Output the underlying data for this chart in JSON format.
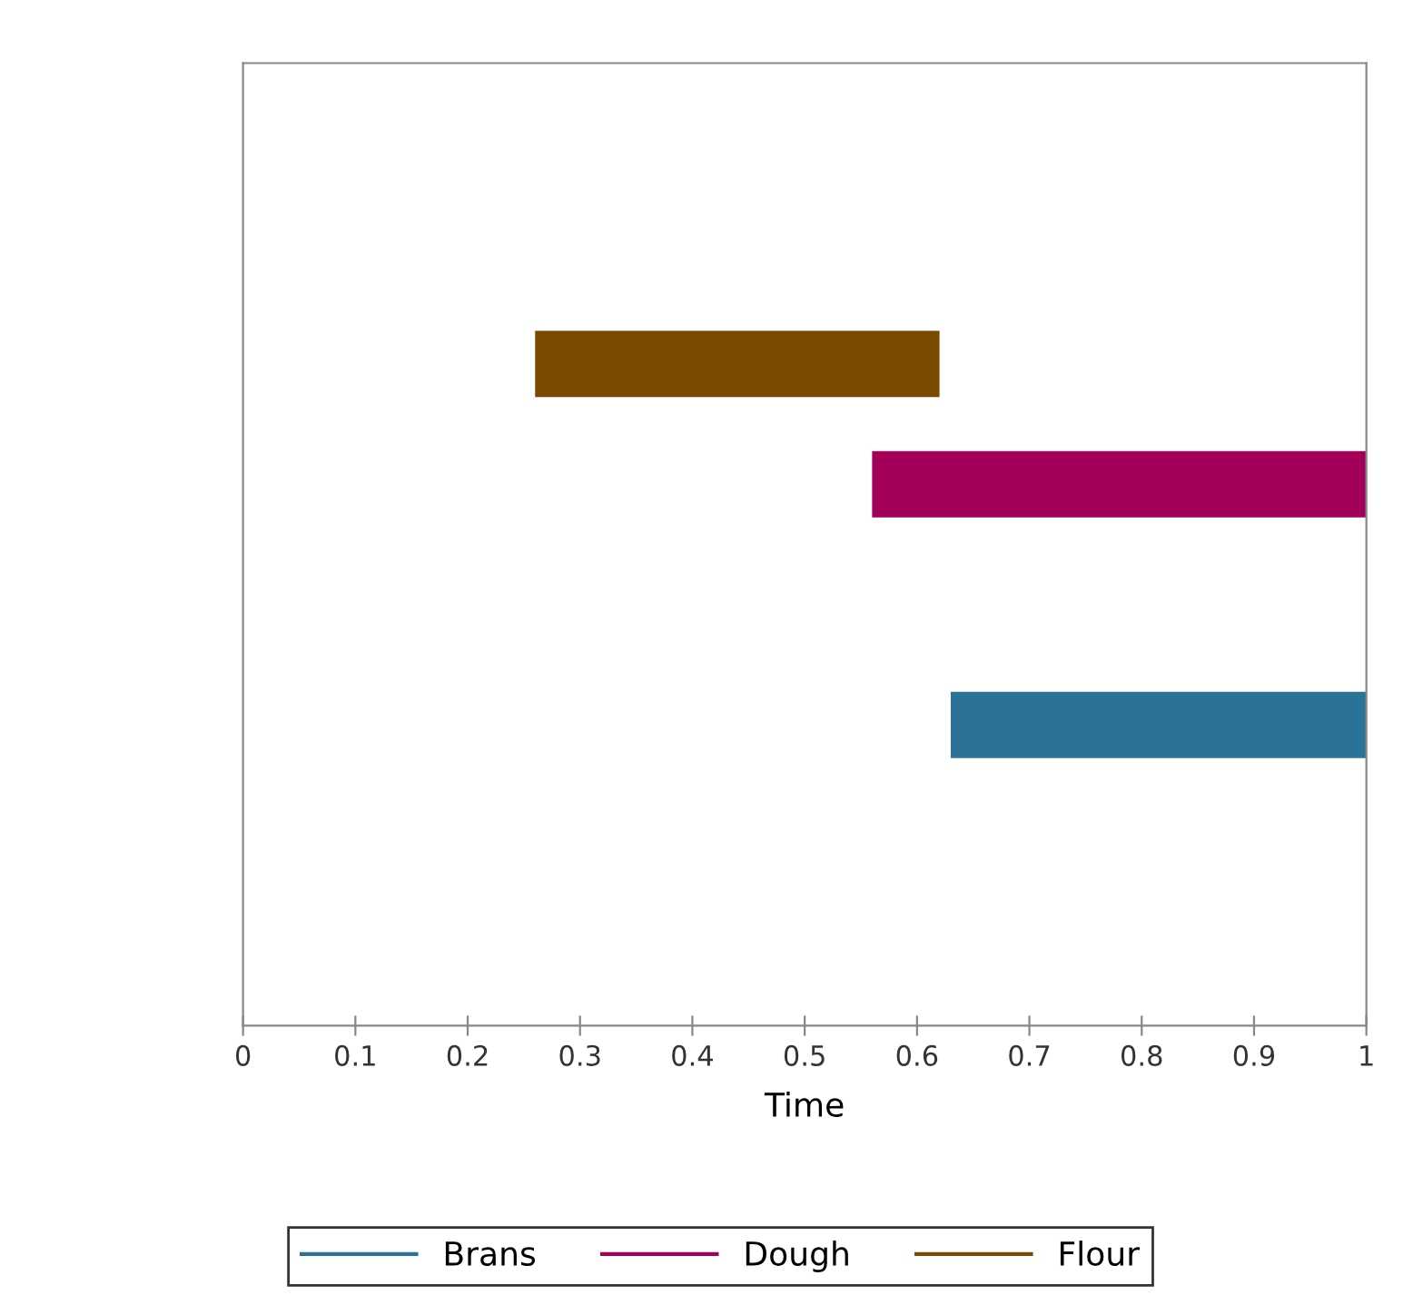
{
  "chart_data": {
    "type": "bar",
    "orientation": "horizontal",
    "xlabel": "Time",
    "categories": [
      null,
      null,
      null,
      null,
      null,
      null,
      null,
      null
    ],
    "xlim": [
      0,
      1
    ],
    "xticks": [
      0,
      0.1,
      0.2,
      0.3,
      0.4,
      0.5,
      0.6,
      0.7,
      0.8,
      0.9,
      1
    ],
    "grid": false,
    "legend": "bottom",
    "series": [
      {
        "name": "Brans",
        "color": "#2a7396",
        "values": [
          null,
          null,
          null,
          null,
          null,
          0.37,
          null,
          null
        ],
        "base": [
          null,
          null,
          null,
          null,
          null,
          0.63,
          null,
          null
        ]
      },
      {
        "name": "Dough",
        "color": "#a3005a",
        "values": [
          null,
          null,
          null,
          0.44,
          null,
          null,
          null,
          null
        ],
        "base": [
          null,
          null,
          null,
          0.56,
          null,
          null,
          null,
          null
        ]
      },
      {
        "name": "Flour",
        "color": "#7a4a00",
        "values": [
          null,
          null,
          0.36,
          null,
          null,
          null,
          null,
          null
        ],
        "base": [
          null,
          null,
          0.26,
          null,
          null,
          null,
          null,
          null
        ]
      }
    ]
  }
}
